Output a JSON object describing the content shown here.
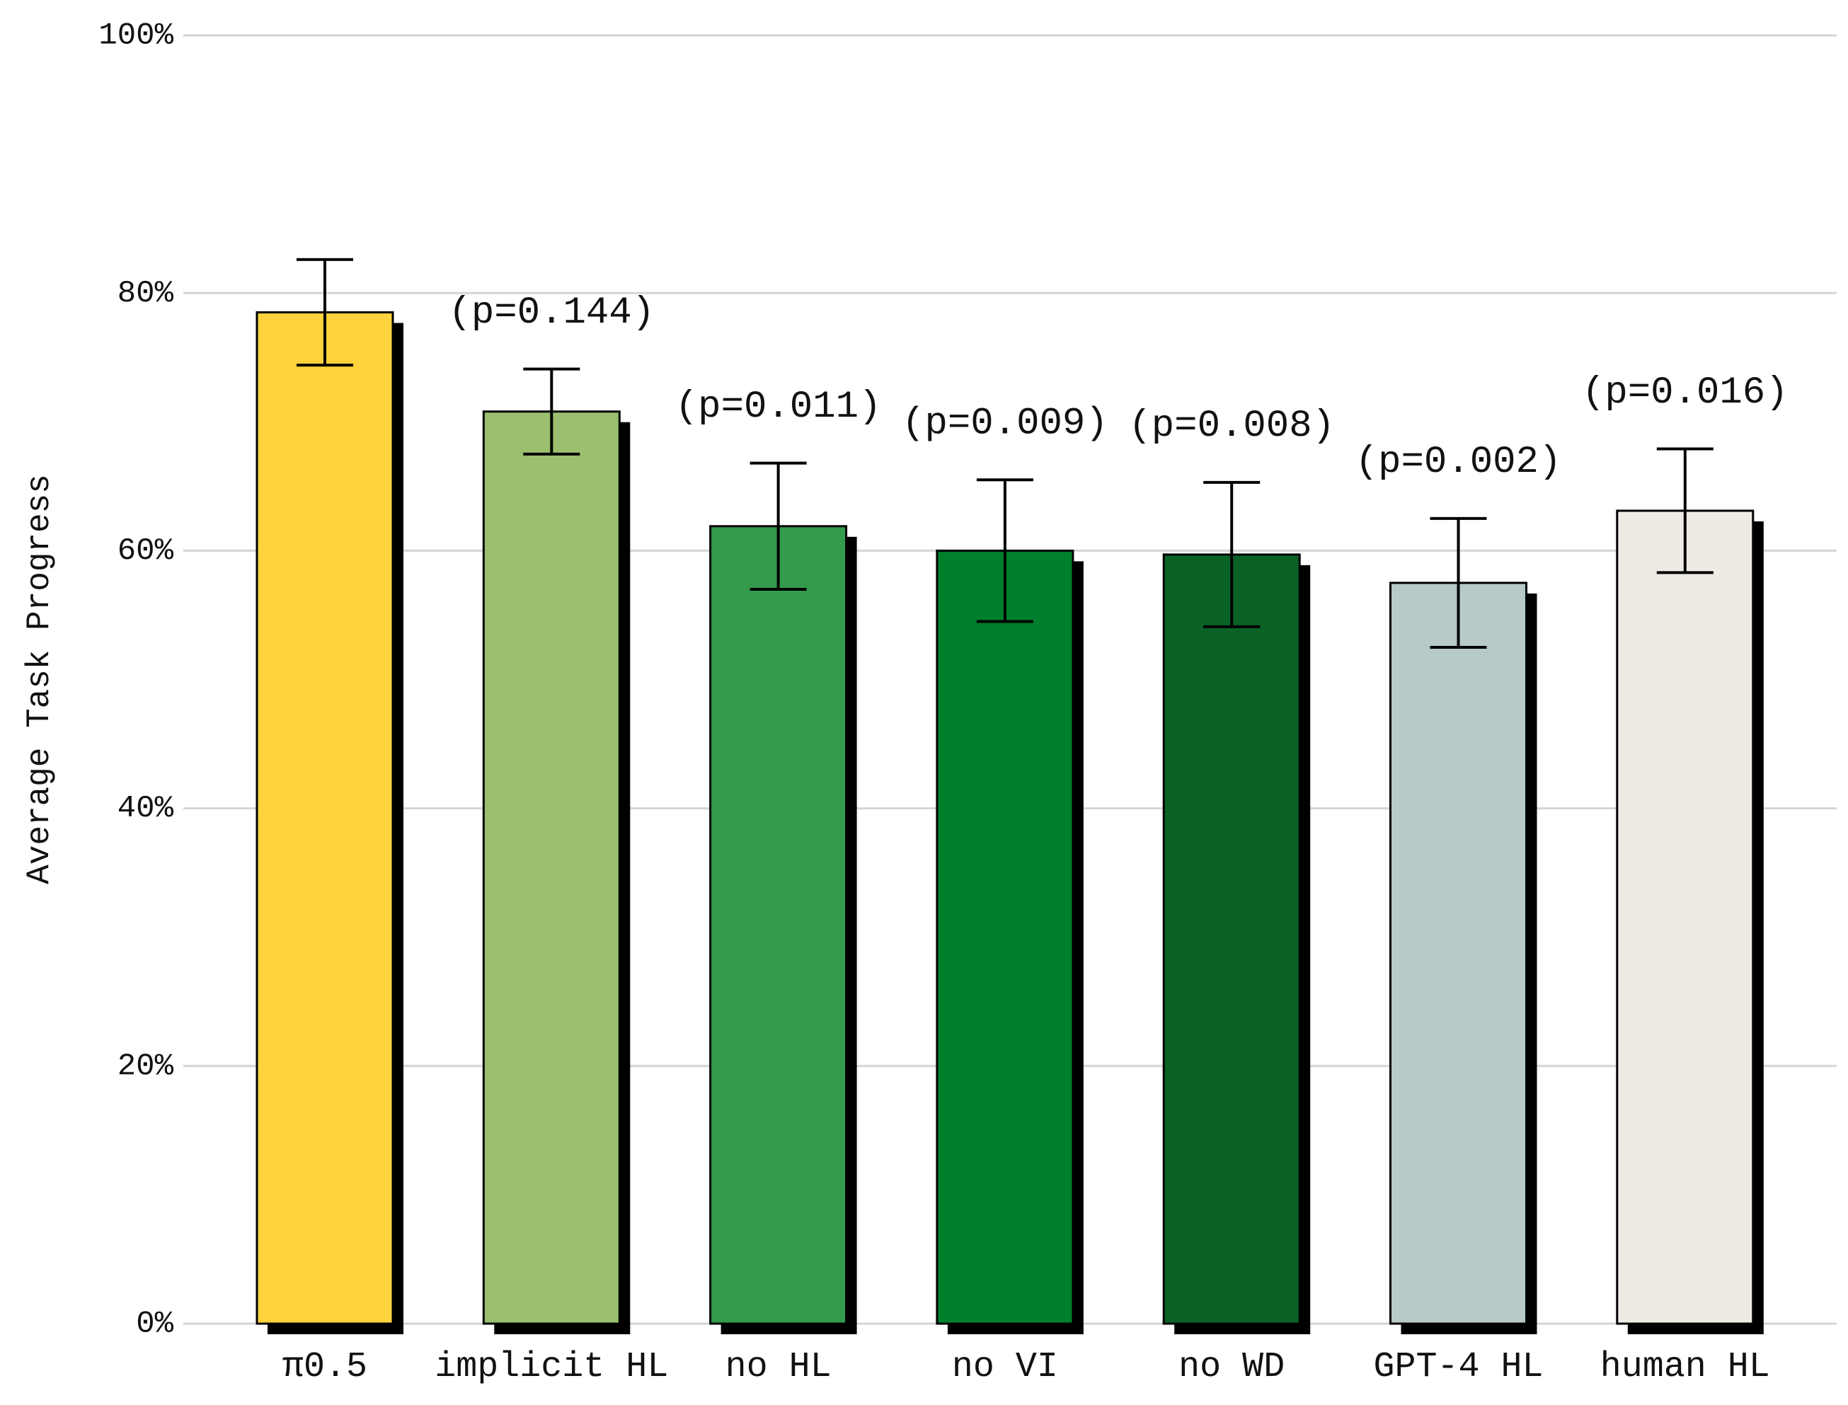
{
  "chart_data": {
    "type": "bar",
    "y_label": "Average Task Progress",
    "categories": [
      "π0.5",
      "implicit HL",
      "no HL",
      "no VI",
      "no WD",
      "GPT-4 HL",
      "human HL"
    ],
    "values": [
      78.5,
      70.8,
      61.9,
      60.0,
      59.7,
      57.5,
      63.1
    ],
    "errors": [
      4.1,
      3.3,
      4.9,
      5.5,
      5.6,
      5.0,
      4.8
    ],
    "annotations": [
      null,
      "(p=0.144)",
      "(p=0.011)",
      "(p=0.009)",
      "(p=0.008)",
      "(p=0.002)",
      "(p=0.016)"
    ],
    "colors": [
      "#ffd33d",
      "#9bbe6f",
      "#349b4c",
      "#007f2d",
      "#0a6226",
      "#b7c9c9",
      "#edebe3"
    ],
    "ylim": [
      0,
      100
    ],
    "yticks": [
      {
        "value": 0,
        "label": "0%"
      },
      {
        "value": 20,
        "label": "20%"
      },
      {
        "value": 40,
        "label": "40%"
      },
      {
        "value": 60,
        "label": "60%"
      },
      {
        "value": 80,
        "label": "80%"
      },
      {
        "value": 100,
        "label": "100%"
      }
    ],
    "grid": true
  }
}
